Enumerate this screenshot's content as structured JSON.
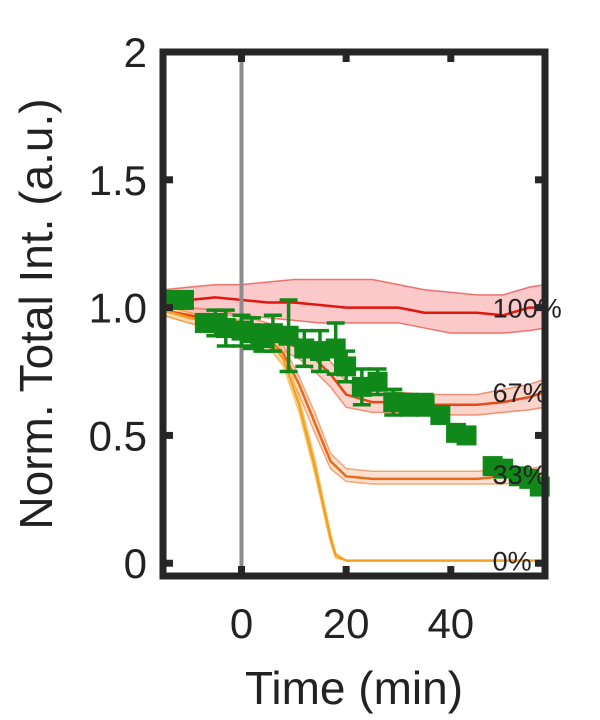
{
  "chart_data": {
    "type": "line",
    "title": "",
    "xlabel": "Time (min)",
    "ylabel": "Norm. Total Int. (a.u.)",
    "xlim": [
      -15,
      58
    ],
    "ylim": [
      -0.05,
      2.0
    ],
    "xticks": [
      0,
      20,
      40
    ],
    "xtick_labels": [
      "0",
      "20",
      "40"
    ],
    "yticks": [
      0,
      0.5,
      1.0,
      1.5,
      2
    ],
    "ytick_labels": [
      "0",
      "0.5",
      "1.0",
      "1.5",
      "2"
    ],
    "grid": false,
    "vertical_line_x": 0,
    "series": [
      {
        "name": "100%",
        "color": "#e3150f",
        "band_color": "#f8a5a5",
        "x": [
          -15,
          -10,
          -5,
          0,
          5,
          10,
          15,
          20,
          25,
          30,
          35,
          40,
          45,
          50,
          55,
          58
        ],
        "y": [
          1.03,
          1.03,
          1.04,
          1.03,
          1.02,
          1.02,
          1.01,
          1.0,
          1.0,
          1.0,
          0.98,
          0.98,
          0.98,
          0.97,
          1.0,
          1.0
        ],
        "lower": [
          0.99,
          0.97,
          0.97,
          0.97,
          0.96,
          0.95,
          0.94,
          0.94,
          0.94,
          0.94,
          0.92,
          0.9,
          0.9,
          0.9,
          0.91,
          0.92
        ],
        "upper": [
          1.07,
          1.08,
          1.09,
          1.09,
          1.1,
          1.11,
          1.11,
          1.11,
          1.11,
          1.09,
          1.07,
          1.06,
          1.05,
          1.05,
          1.08,
          1.09
        ]
      },
      {
        "name": "67%",
        "color": "#e64816",
        "band_color": "#f9b7a8",
        "x": [
          -15,
          -10,
          -5,
          0,
          5,
          8,
          11,
          14,
          17,
          20,
          25,
          30,
          35,
          40,
          45,
          50,
          55,
          58
        ],
        "y": [
          0.99,
          0.97,
          0.95,
          0.93,
          0.9,
          0.87,
          0.84,
          0.8,
          0.74,
          0.66,
          0.63,
          0.63,
          0.62,
          0.62,
          0.62,
          0.63,
          0.65,
          0.67
        ],
        "lower": [
          0.97,
          0.94,
          0.92,
          0.89,
          0.86,
          0.83,
          0.8,
          0.75,
          0.69,
          0.61,
          0.59,
          0.59,
          0.58,
          0.58,
          0.58,
          0.59,
          0.6,
          0.61
        ],
        "upper": [
          1.02,
          1.0,
          0.99,
          0.97,
          0.94,
          0.91,
          0.88,
          0.84,
          0.79,
          0.71,
          0.68,
          0.67,
          0.66,
          0.66,
          0.66,
          0.68,
          0.7,
          0.72
        ]
      },
      {
        "name": "33%",
        "color": "#ea6a1c",
        "band_color": "#fbcdb0",
        "x": [
          -15,
          -10,
          -5,
          0,
          5,
          8,
          11,
          14,
          17,
          20,
          25,
          30,
          35,
          40,
          45,
          50,
          55,
          58
        ],
        "y": [
          0.99,
          0.96,
          0.94,
          0.92,
          0.88,
          0.82,
          0.7,
          0.55,
          0.4,
          0.34,
          0.33,
          0.33,
          0.33,
          0.33,
          0.33,
          0.34,
          0.34,
          0.35
        ],
        "lower": [
          0.97,
          0.94,
          0.91,
          0.89,
          0.85,
          0.78,
          0.66,
          0.51,
          0.37,
          0.32,
          0.31,
          0.31,
          0.31,
          0.31,
          0.31,
          0.31,
          0.32,
          0.32
        ],
        "upper": [
          1.01,
          0.98,
          0.96,
          0.95,
          0.91,
          0.85,
          0.73,
          0.59,
          0.43,
          0.37,
          0.36,
          0.36,
          0.36,
          0.36,
          0.36,
          0.37,
          0.37,
          0.38
        ]
      },
      {
        "name": "0%",
        "color": "#f2a21e",
        "band_color": "#fbe0ad",
        "x": [
          -15,
          -10,
          -5,
          0,
          5,
          8,
          11,
          14,
          17,
          18,
          20,
          25,
          30,
          35,
          40,
          45,
          50,
          55,
          58
        ],
        "y": [
          0.99,
          0.96,
          0.94,
          0.92,
          0.88,
          0.8,
          0.62,
          0.38,
          0.1,
          0.03,
          0.01,
          0.01,
          0.01,
          0.01,
          0.01,
          0.01,
          0.01,
          0.01,
          0.01
        ],
        "lower": [
          0.97,
          0.94,
          0.92,
          0.89,
          0.85,
          0.77,
          0.59,
          0.35,
          0.08,
          0.02,
          0.01,
          0.01,
          0.01,
          0.01,
          0.01,
          0.01,
          0.01,
          0.01,
          0.01
        ],
        "upper": [
          1.01,
          0.98,
          0.96,
          0.95,
          0.91,
          0.83,
          0.65,
          0.41,
          0.12,
          0.04,
          0.01,
          0.01,
          0.01,
          0.01,
          0.01,
          0.01,
          0.01,
          0.01,
          0.01
        ]
      }
    ],
    "scatter": {
      "color": "#11891a",
      "points": [
        {
          "x": -13,
          "y": 1.03,
          "err": 0.03
        },
        {
          "x": -11,
          "y": 1.03,
          "err": 0.02
        },
        {
          "x": -7,
          "y": 0.94,
          "err": 0.03
        },
        {
          "x": -5,
          "y": 0.94,
          "err": 0.05
        },
        {
          "x": -3,
          "y": 0.92,
          "err": 0.07
        },
        {
          "x": 0,
          "y": 0.91,
          "err": 0.06
        },
        {
          "x": 2,
          "y": 0.9,
          "err": 0.06
        },
        {
          "x": 4,
          "y": 0.88,
          "err": 0.05
        },
        {
          "x": 6,
          "y": 0.9,
          "err": 0.07
        },
        {
          "x": 9,
          "y": 0.89,
          "err": 0.14
        },
        {
          "x": 12,
          "y": 0.84,
          "err": 0.07
        },
        {
          "x": 15,
          "y": 0.83,
          "err": 0.08
        },
        {
          "x": 18,
          "y": 0.84,
          "err": 0.1
        },
        {
          "x": 20,
          "y": 0.77,
          "err": 0.06
        },
        {
          "x": 23,
          "y": 0.69,
          "err": 0.07
        },
        {
          "x": 26,
          "y": 0.71,
          "err": 0.05
        },
        {
          "x": 29,
          "y": 0.63,
          "err": 0.05
        },
        {
          "x": 32,
          "y": 0.62,
          "err": 0.04
        },
        {
          "x": 35,
          "y": 0.62,
          "err": 0.04
        },
        {
          "x": 38,
          "y": 0.58,
          "err": 0.03
        },
        {
          "x": 41,
          "y": 0.51,
          "err": 0.03
        },
        {
          "x": 43,
          "y": 0.5,
          "err": 0.02
        },
        {
          "x": 48,
          "y": 0.38,
          "err": 0.02
        },
        {
          "x": 50,
          "y": 0.37,
          "err": 0.03
        },
        {
          "x": 53,
          "y": 0.34,
          "err": 0.03
        },
        {
          "x": 55,
          "y": 0.33,
          "err": 0.03
        },
        {
          "x": 57,
          "y": 0.3,
          "err": 0.02
        }
      ]
    }
  }
}
